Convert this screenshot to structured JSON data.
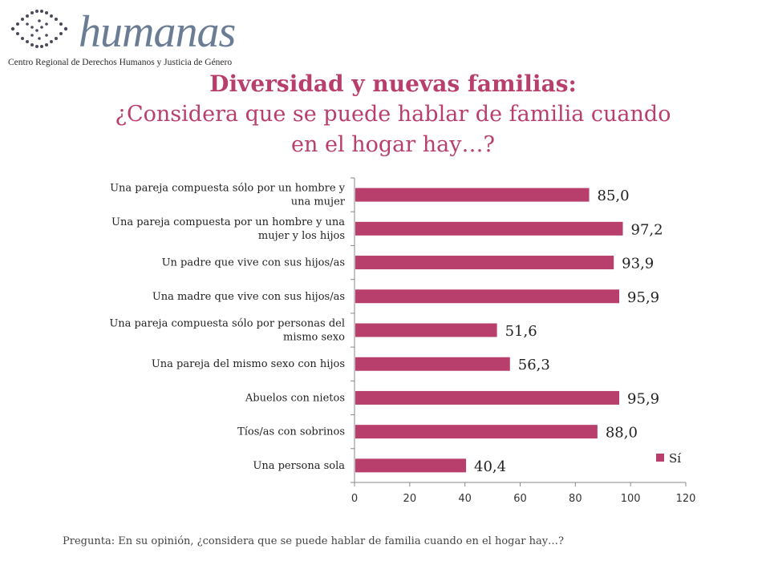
{
  "logo": {
    "wordmark": "humanas",
    "subtitle": "Centro Regional de Derechos Humanos y Justicia de Género"
  },
  "title": {
    "main": "Diversidad y nuevas familias:",
    "line1": "¿Considera que se puede hablar de familia cuando",
    "line2": "en el hogar hay…?"
  },
  "footnote": "Pregunta: En su opinión, ¿considera que se puede hablar de familia cuando en el hogar hay…?",
  "colors": {
    "bar": "#b83f6c",
    "title": "#b83f6c"
  },
  "chart_data": {
    "type": "bar",
    "orientation": "horizontal",
    "categories": [
      [
        "Una pareja compuesta sólo por un hombre y",
        "una mujer"
      ],
      [
        "Una pareja compuesta por un hombre y una",
        "mujer y los hijos"
      ],
      [
        "Un padre que vive con sus hijos/as"
      ],
      [
        "Una madre que vive con sus hijos/as"
      ],
      [
        "Una pareja compuesta sólo por personas del",
        "mismo sexo"
      ],
      [
        "Una pareja del mismo sexo con hijos"
      ],
      [
        "Abuelos con nietos"
      ],
      [
        "Tíos/as con sobrinos"
      ],
      [
        "Una persona sola"
      ]
    ],
    "series": [
      {
        "name": "Sí",
        "values": [
          85.0,
          97.2,
          93.9,
          95.9,
          51.6,
          56.3,
          95.9,
          88.0,
          40.4
        ]
      }
    ],
    "value_labels": [
      "85,0",
      "97,2",
      "93,9",
      "95,9",
      "51,6",
      "56,3",
      "95,9",
      "88,0",
      "40,4"
    ],
    "xlim": [
      0,
      120
    ],
    "xticks": [
      0,
      20,
      40,
      60,
      80,
      100,
      120
    ],
    "legend": "bottom-right",
    "grid": false
  }
}
